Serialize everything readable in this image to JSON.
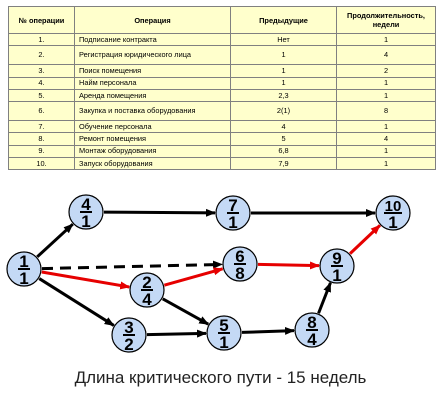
{
  "table": {
    "headers": [
      "№ операции",
      "Операция",
      "Предыдущие",
      "Продолжительность, недели"
    ],
    "rows": [
      [
        "1.",
        "Подписание контракта",
        "Нет",
        "1"
      ],
      [
        "2.",
        "Регистрация юридического лица",
        "1",
        "4"
      ],
      [
        "3.",
        "Поиск помещения",
        "1",
        "2"
      ],
      [
        "4.",
        "Найм персонала",
        "1",
        "1"
      ],
      [
        "5.",
        "Аренда помещения",
        "2,3",
        "1"
      ],
      [
        "6.",
        "Закупка и поставка оборудования",
        "2(1)",
        "8"
      ],
      [
        "7.",
        "Обучение персонала",
        "4",
        "1"
      ],
      [
        "8.",
        "Ремонт помещения",
        "5",
        "4"
      ],
      [
        "9.",
        "Монтаж оборудования",
        "6,8",
        "1"
      ],
      [
        "10.",
        "Запуск оборудования",
        "7,9",
        "1"
      ]
    ]
  },
  "graph": {
    "nodes": [
      {
        "id": "n1",
        "top": "1",
        "bottom": "1"
      },
      {
        "id": "n2",
        "top": "2",
        "bottom": "4"
      },
      {
        "id": "n3",
        "top": "3",
        "bottom": "2"
      },
      {
        "id": "n4",
        "top": "4",
        "bottom": "1"
      },
      {
        "id": "n5",
        "top": "5",
        "bottom": "1"
      },
      {
        "id": "n6",
        "top": "6",
        "bottom": "8"
      },
      {
        "id": "n7",
        "top": "7",
        "bottom": "1"
      },
      {
        "id": "n8",
        "top": "8",
        "bottom": "4"
      },
      {
        "id": "n9",
        "top": "9",
        "bottom": "1"
      },
      {
        "id": "n10",
        "top": "10",
        "bottom": "1"
      }
    ],
    "edges": [
      {
        "from": "n1",
        "to": "n4",
        "style": "normal"
      },
      {
        "from": "n1",
        "to": "n2",
        "style": "critical"
      },
      {
        "from": "n1",
        "to": "n3",
        "style": "normal"
      },
      {
        "from": "n1",
        "to": "n6",
        "style": "dashed"
      },
      {
        "from": "n2",
        "to": "n6",
        "style": "critical"
      },
      {
        "from": "n2",
        "to": "n5",
        "style": "normal"
      },
      {
        "from": "n3",
        "to": "n5",
        "style": "normal"
      },
      {
        "from": "n4",
        "to": "n7",
        "style": "normal"
      },
      {
        "from": "n5",
        "to": "n8",
        "style": "normal"
      },
      {
        "from": "n6",
        "to": "n9",
        "style": "critical"
      },
      {
        "from": "n8",
        "to": "n9",
        "style": "normal"
      },
      {
        "from": "n7",
        "to": "n10",
        "style": "normal"
      },
      {
        "from": "n9",
        "to": "n10",
        "style": "critical"
      }
    ],
    "colors": {
      "node_fill": "#c4d9f5",
      "node_stroke": "#000000",
      "edge": "#000000",
      "critical": "#e60000"
    }
  },
  "caption": "Длина критического пути - 15 недель"
}
